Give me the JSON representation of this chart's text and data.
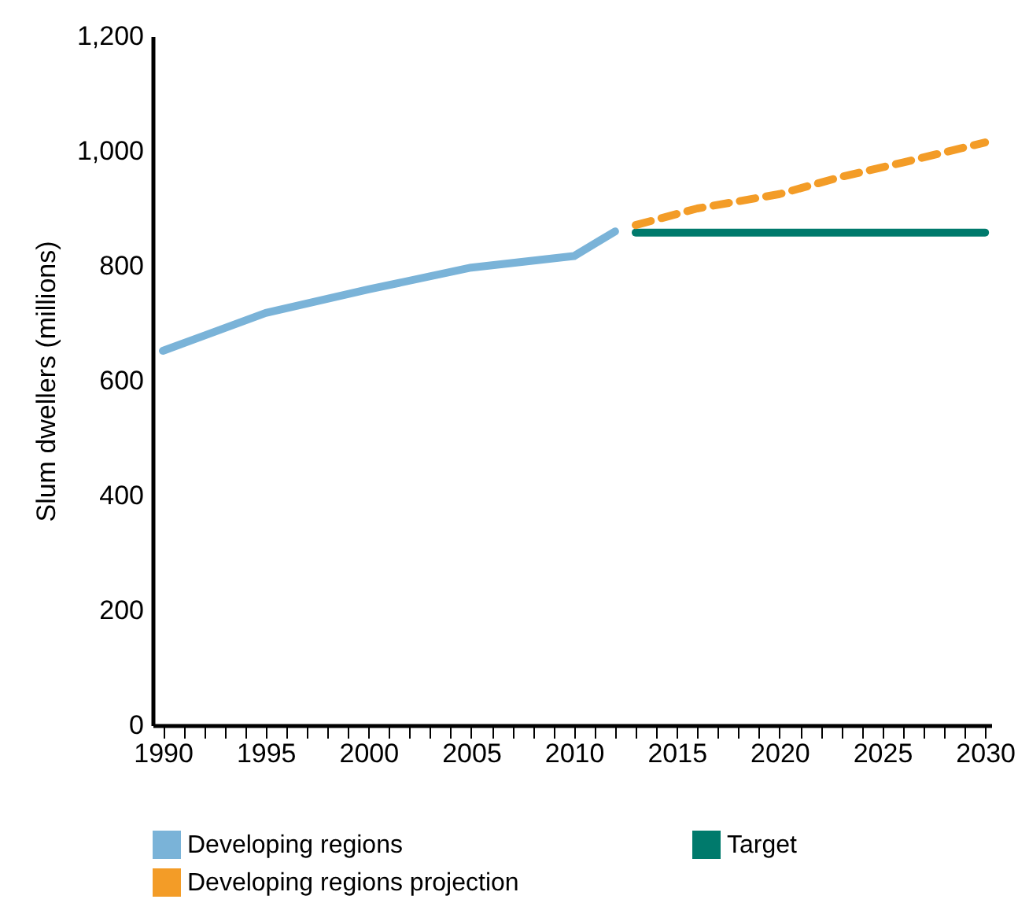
{
  "chart_data": {
    "type": "line",
    "ylabel": "Slum dwellers (millions)",
    "xlim": [
      1989.5,
      2030.3
    ],
    "xticks": [
      1990,
      {
        "value": 1991,
        "label": null
      },
      {
        "value": 1992,
        "label": null
      },
      {
        "value": 1993,
        "label": null
      },
      {
        "value": 1994,
        "label": null
      },
      1995,
      {
        "value": 1996,
        "label": null
      },
      {
        "value": 1997,
        "label": null
      },
      {
        "value": 1998,
        "label": null
      },
      {
        "value": 1999,
        "label": null
      },
      2000,
      {
        "value": 2001,
        "label": null
      },
      {
        "value": 2002,
        "label": null
      },
      {
        "value": 2003,
        "label": null
      },
      {
        "value": 2004,
        "label": null
      },
      2005,
      {
        "value": 2006,
        "label": null
      },
      {
        "value": 2007,
        "label": null
      },
      {
        "value": 2008,
        "label": null
      },
      {
        "value": 2009,
        "label": null
      },
      2010,
      {
        "value": 2011,
        "label": null
      },
      {
        "value": 2012,
        "label": null
      },
      {
        "value": 2013,
        "label": null
      },
      {
        "value": 2014,
        "label": null
      },
      2015,
      {
        "value": 2016,
        "label": null
      },
      {
        "value": 2017,
        "label": null
      },
      {
        "value": 2018,
        "label": null
      },
      {
        "value": 2019,
        "label": null
      },
      2020,
      {
        "value": 2021,
        "label": null
      },
      {
        "value": 2022,
        "label": null
      },
      {
        "value": 2023,
        "label": null
      },
      {
        "value": 2024,
        "label": null
      },
      2025,
      {
        "value": 2026,
        "label": null
      },
      {
        "value": 2027,
        "label": null
      },
      {
        "value": 2028,
        "label": null
      },
      {
        "value": 2029,
        "label": null
      },
      2030
    ],
    "ylim": [
      0,
      1200
    ],
    "yticks": [
      0,
      200,
      400,
      600,
      800,
      {
        "value": 1000,
        "label": "1,000"
      },
      {
        "value": 1200,
        "label": "1,200"
      }
    ],
    "grid": false,
    "legend": "bottom",
    "marker": "none",
    "series": [
      {
        "name": "Developing regions",
        "color": "#7ab3d8",
        "line_style": "solid",
        "x": [
          1990,
          1995,
          2000,
          2005,
          2010,
          2012
        ],
        "values": [
          652,
          718,
          759,
          797,
          817,
          860
        ]
      },
      {
        "name": "Target",
        "color": "#007a6c",
        "line_style": "solid",
        "x": [
          2013,
          2030
        ],
        "values": [
          858,
          858
        ]
      },
      {
        "name": "Developing regions projection",
        "color": "#f39c27",
        "line_style": "dashed",
        "x": [
          2013,
          2016,
          2020,
          2023,
          2026,
          2030
        ],
        "values": [
          871,
          900,
          925,
          955,
          980,
          1015
        ]
      }
    ]
  }
}
